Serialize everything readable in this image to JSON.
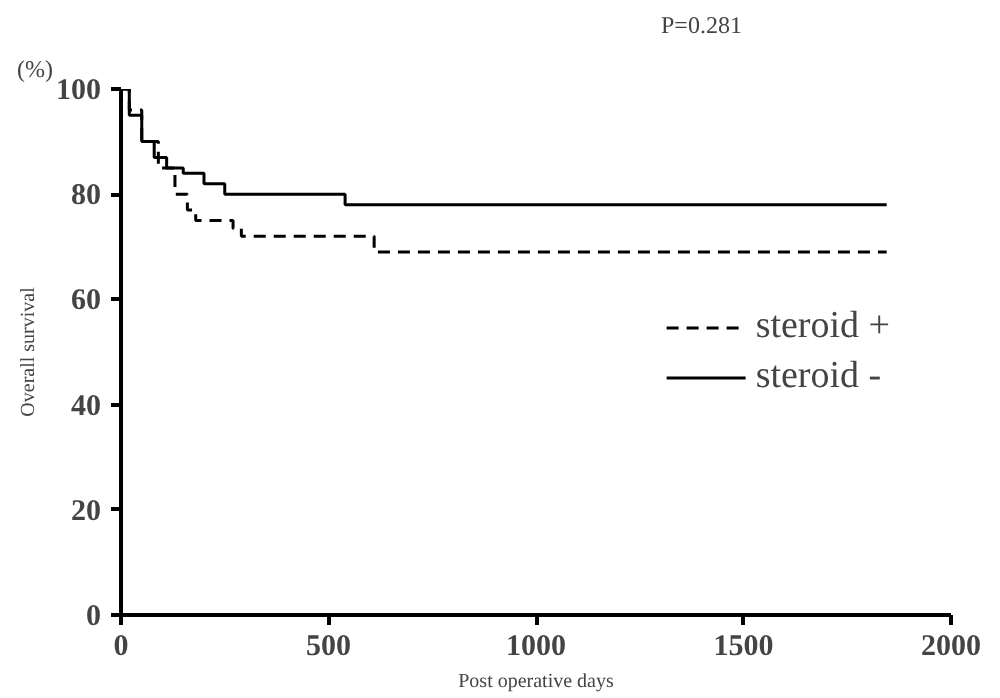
{
  "chart_data": {
    "type": "step",
    "xlabel": "Post operative days",
    "ylabel": "Overall survival",
    "annotations": [
      "(%)",
      "P=0.281"
    ],
    "xlim": [
      0,
      2000
    ],
    "xticks": [
      0,
      500,
      1000,
      1500,
      2000
    ],
    "ylim": [
      0,
      100
    ],
    "yticks": [
      0,
      20,
      40,
      60,
      80,
      100
    ],
    "grid": false,
    "legend": "right",
    "marker": "none",
    "series": [
      {
        "name": "steroid +",
        "color": "#000000",
        "line_style": "dashed",
        "x": [
          0,
          20,
          50,
          90,
          130,
          160,
          180,
          270,
          290,
          610,
          1845
        ],
        "values": [
          100,
          96,
          90,
          85,
          80,
          77,
          75,
          73.5,
          72,
          69,
          69
        ]
      },
      {
        "name": "steroid -",
        "color": "#000000",
        "line_style": "solid",
        "x": [
          0,
          20,
          50,
          80,
          110,
          150,
          200,
          250,
          540,
          1845
        ],
        "values": [
          100,
          95,
          90,
          87,
          85,
          84,
          82,
          80,
          78,
          78
        ]
      }
    ]
  }
}
